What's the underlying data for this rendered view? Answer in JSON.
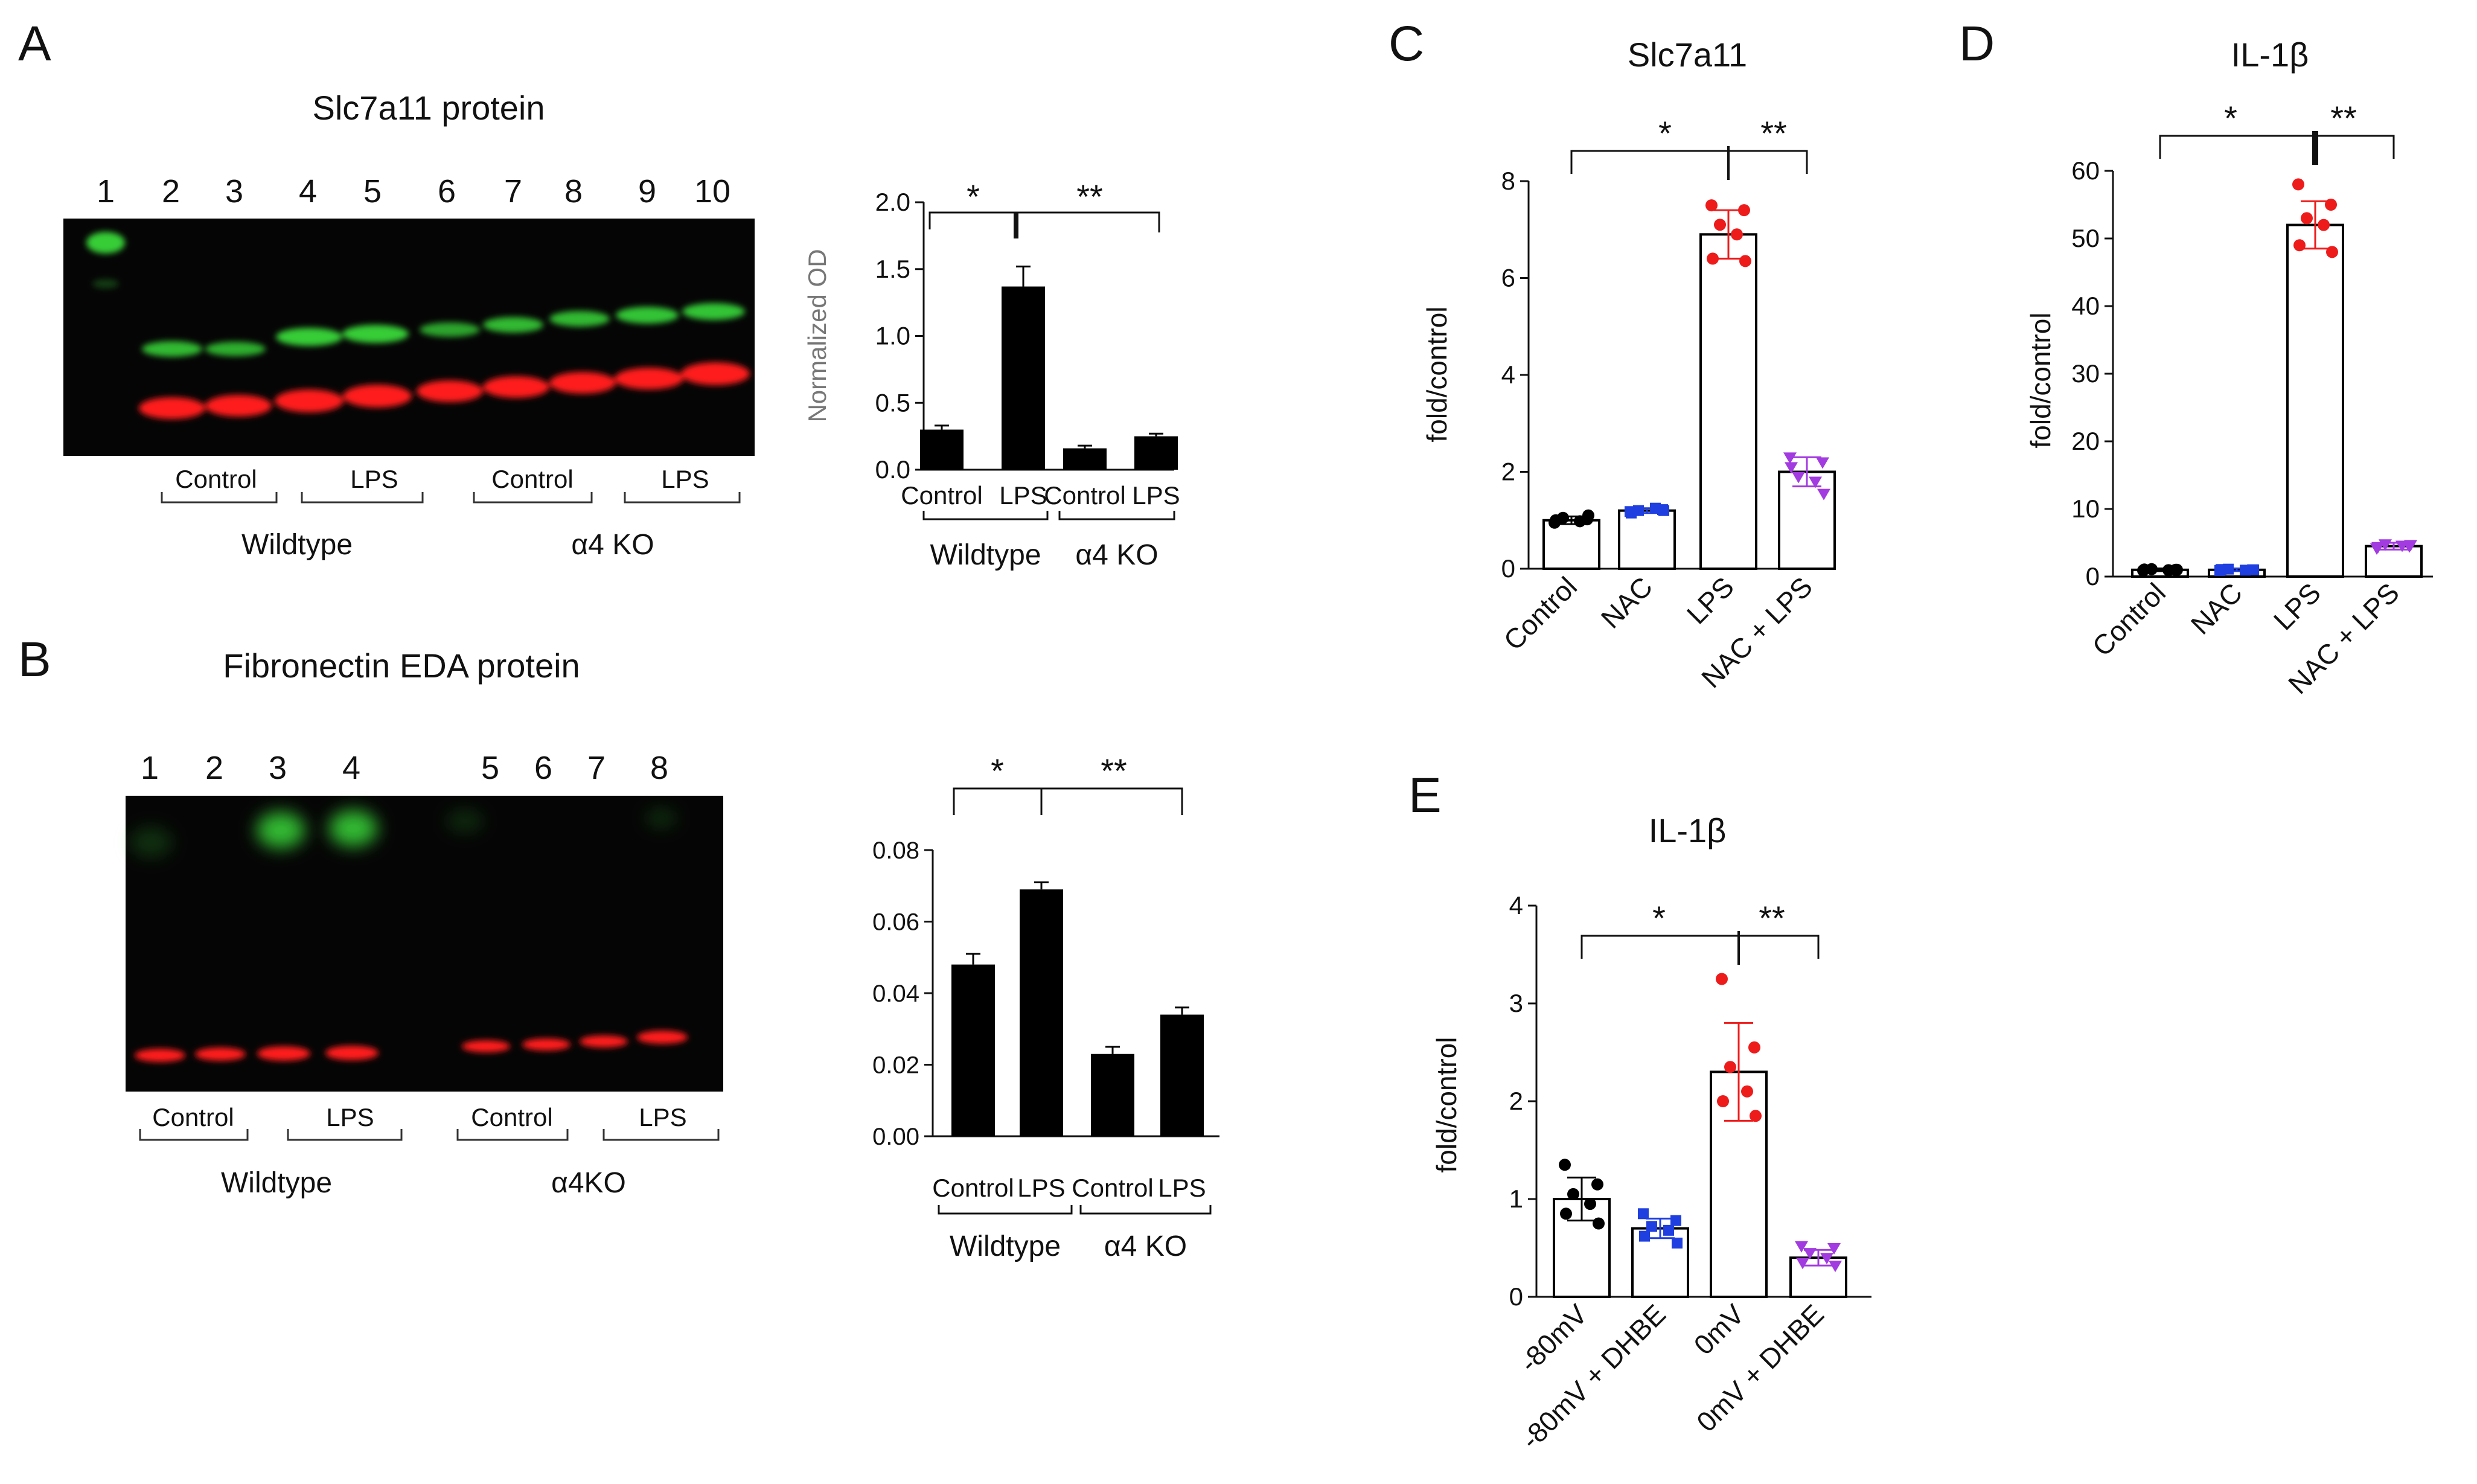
{
  "figure": {
    "panels": {
      "A": {
        "label": "A",
        "title": "Slc7a11 protein",
        "lanes": [
          "1",
          "2",
          "3",
          "4",
          "5",
          "6",
          "7",
          "8",
          "9",
          "10"
        ],
        "conditions": [
          "Control",
          "LPS",
          "Control",
          "LPS"
        ],
        "groups": [
          "Wildtype",
          "α4 KO"
        ]
      },
      "B": {
        "label": "B",
        "title": "Fibronectin EDA protein",
        "lanes": [
          "1",
          "2",
          "3",
          "4",
          "5",
          "6",
          "7",
          "8"
        ],
        "conditions": [
          "Control",
          "LPS",
          "Control",
          "LPS"
        ],
        "groups": [
          "Wildtype",
          "α4KO"
        ]
      },
      "C": {
        "label": "C"
      },
      "D": {
        "label": "D"
      },
      "E": {
        "label": "E"
      }
    },
    "colors": {
      "green_band": "#39d83a",
      "red_band": "#ff1a1a",
      "blot_bg": "#050505",
      "black": "#000000",
      "blue": "#1f3fe0",
      "red": "#ee1b1b",
      "purple": "#a23be0"
    }
  },
  "chart_data": [
    {
      "id": "A-bar",
      "type": "bar",
      "categories": [
        "Control",
        "LPS",
        "Control",
        "LPS"
      ],
      "groups": [
        "Wildtype",
        "α4 KO"
      ],
      "values": [
        0.3,
        1.37,
        0.16,
        0.25
      ],
      "errors": [
        0.03,
        0.15,
        0.02,
        0.02
      ],
      "ylabel": "Normalized OD",
      "ylim": [
        0,
        2.0
      ],
      "yticks": [
        "0.0",
        "0.5",
        "1.0",
        "1.5",
        "2.0"
      ],
      "significance": [
        "*",
        "**"
      ]
    },
    {
      "id": "B-bar",
      "type": "bar",
      "categories": [
        "Control",
        "LPS",
        "Control",
        "LPS"
      ],
      "groups": [
        "Wildtype",
        "α4 KO"
      ],
      "values": [
        0.048,
        0.069,
        0.023,
        0.034
      ],
      "errors": [
        0.003,
        0.002,
        0.002,
        0.002
      ],
      "ylim": [
        0,
        0.08
      ],
      "yticks": [
        "0.00",
        "0.02",
        "0.04",
        "0.06",
        "0.08"
      ],
      "significance": [
        "*",
        "**"
      ]
    },
    {
      "id": "C",
      "type": "bar",
      "title": "Slc7a11",
      "categories": [
        "Control",
        "NAC",
        "LPS",
        "NAC + LPS"
      ],
      "values": [
        1.0,
        1.2,
        6.9,
        2.0
      ],
      "errors": [
        0.08,
        0.05,
        0.5,
        0.3
      ],
      "points": [
        [
          0.95,
          1.02,
          1.05,
          0.98,
          1.0,
          1.1
        ],
        [
          1.18,
          1.22,
          1.2,
          1.25,
          1.15,
          1.2
        ],
        [
          7.5,
          7.4,
          7.1,
          6.9,
          6.4,
          6.35
        ],
        [
          2.3,
          2.2,
          1.9,
          1.8,
          2.1,
          1.55
        ]
      ],
      "ylabel": "fold/control",
      "ylim": [
        0,
        8
      ],
      "yticks": [
        "0",
        "2",
        "4",
        "6",
        "8"
      ],
      "significance": [
        "*",
        "**"
      ]
    },
    {
      "id": "D",
      "type": "bar",
      "title": "IL-1β",
      "categories": [
        "Control",
        "NAC",
        "LPS",
        "NAC + LPS"
      ],
      "values": [
        1.0,
        1.0,
        52,
        4.5
      ],
      "errors": [
        0.2,
        0.2,
        3.5,
        0.5
      ],
      "points": [
        [
          0.9,
          1.0,
          1.1,
          0.95,
          1.05,
          1.0
        ],
        [
          0.9,
          1.0,
          1.1,
          0.95,
          1.05,
          1.0
        ],
        [
          58,
          55,
          53,
          52,
          49,
          48
        ],
        [
          4.2,
          4.5,
          4.8,
          4.6,
          4.4,
          4.7
        ]
      ],
      "ylabel": "fold/control",
      "ylim": [
        0,
        60
      ],
      "yticks": [
        "0",
        "10",
        "20",
        "30",
        "40",
        "50",
        "60"
      ],
      "significance": [
        "*",
        "**"
      ]
    },
    {
      "id": "E",
      "type": "bar",
      "title": "IL-1β",
      "categories": [
        "-80mV",
        "-80mV + DHBE",
        "0mV",
        "0mV +  DHBE"
      ],
      "values": [
        1.0,
        0.7,
        2.3,
        0.4
      ],
      "errors": [
        0.22,
        0.1,
        0.5,
        0.08
      ],
      "points": [
        [
          1.35,
          1.15,
          1.05,
          0.95,
          0.85,
          0.75
        ],
        [
          0.85,
          0.78,
          0.72,
          0.68,
          0.62,
          0.55
        ],
        [
          3.25,
          2.55,
          2.35,
          2.1,
          2.0,
          1.85
        ],
        [
          0.52,
          0.5,
          0.45,
          0.4,
          0.35,
          0.32
        ]
      ],
      "ylabel": "fold/control",
      "ylim": [
        0,
        4
      ],
      "yticks": [
        "0",
        "1",
        "2",
        "3",
        "4"
      ],
      "significance": [
        "*",
        "**"
      ]
    }
  ]
}
